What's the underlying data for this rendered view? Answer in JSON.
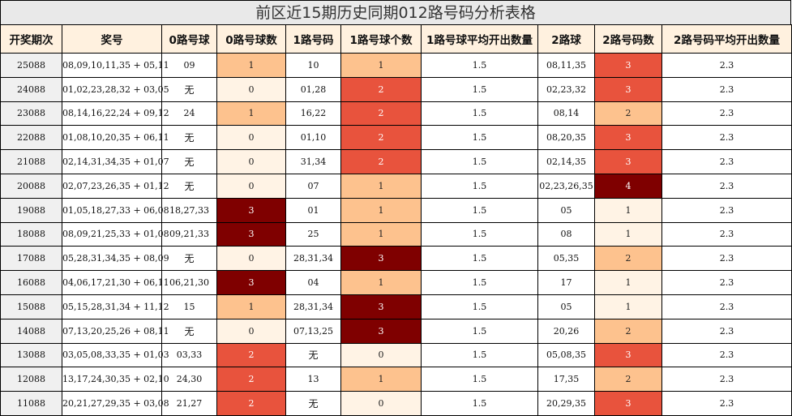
{
  "title": "前区近15期历史同期012路号码分析表格",
  "headers": [
    "开奖期次",
    "奖号",
    "0路号球",
    "0路号球数",
    "1路号码",
    "1路号球个数",
    "1路号球平均开出数量",
    "2路球",
    "2路号码数",
    "2路号码平均开出数量"
  ],
  "rows": [
    {
      "period": "25088",
      "numbers": "08,09,10,11,35 + 05,11",
      "r0": "09",
      "c0": "1",
      "r1": "10",
      "c1": "1",
      "a1": "1.5",
      "r2": "08,11,35",
      "c2": "3",
      "a2": "2.3"
    },
    {
      "period": "24088",
      "numbers": "01,02,23,28,32 + 03,05",
      "r0": "无",
      "c0": "0",
      "r1": "01,28",
      "c1": "2",
      "a1": "1.5",
      "r2": "02,23,32",
      "c2": "3",
      "a2": "2.3"
    },
    {
      "period": "23088",
      "numbers": "08,14,16,22,24 + 09,12",
      "r0": "24",
      "c0": "1",
      "r1": "16,22",
      "c1": "2",
      "a1": "1.5",
      "r2": "08,14",
      "c2": "2",
      "a2": "2.3"
    },
    {
      "period": "22088",
      "numbers": "01,08,10,20,35 + 06,11",
      "r0": "无",
      "c0": "0",
      "r1": "01,10",
      "c1": "2",
      "a1": "1.5",
      "r2": "08,20,35",
      "c2": "3",
      "a2": "2.3"
    },
    {
      "period": "21088",
      "numbers": "02,14,31,34,35 + 01,07",
      "r0": "无",
      "c0": "0",
      "r1": "31,34",
      "c1": "2",
      "a1": "1.5",
      "r2": "02,14,35",
      "c2": "3",
      "a2": "2.3"
    },
    {
      "period": "20088",
      "numbers": "02,07,23,26,35 + 01,12",
      "r0": "无",
      "c0": "0",
      "r1": "07",
      "c1": "1",
      "a1": "1.5",
      "r2": "02,23,26,35",
      "c2": "4",
      "a2": "2.3"
    },
    {
      "period": "19088",
      "numbers": "01,05,18,27,33 + 06,08",
      "r0": "18,27,33",
      "c0": "3",
      "r1": "01",
      "c1": "1",
      "a1": "1.5",
      "r2": "05",
      "c2": "1",
      "a2": "2.3"
    },
    {
      "period": "18088",
      "numbers": "08,09,21,25,33 + 01,08",
      "r0": "09,21,33",
      "c0": "3",
      "r1": "25",
      "c1": "1",
      "a1": "1.5",
      "r2": "08",
      "c2": "1",
      "a2": "2.3"
    },
    {
      "period": "17088",
      "numbers": "05,28,31,34,35 + 08,09",
      "r0": "无",
      "c0": "0",
      "r1": "28,31,34",
      "c1": "3",
      "a1": "1.5",
      "r2": "05,35",
      "c2": "2",
      "a2": "2.3"
    },
    {
      "period": "16088",
      "numbers": "04,06,17,21,30 + 06,11",
      "r0": "06,21,30",
      "c0": "3",
      "r1": "04",
      "c1": "1",
      "a1": "1.5",
      "r2": "17",
      "c2": "1",
      "a2": "2.3"
    },
    {
      "period": "15088",
      "numbers": "05,15,28,31,34 + 11,12",
      "r0": "15",
      "c0": "1",
      "r1": "28,31,34",
      "c1": "3",
      "a1": "1.5",
      "r2": "05",
      "c2": "1",
      "a2": "2.3"
    },
    {
      "period": "14088",
      "numbers": "07,13,20,25,26 + 08,11",
      "r0": "无",
      "c0": "0",
      "r1": "07,13,25",
      "c1": "3",
      "a1": "1.5",
      "r2": "20,26",
      "c2": "2",
      "a2": "2.3"
    },
    {
      "period": "13088",
      "numbers": "03,05,08,33,35 + 01,03",
      "r0": "03,33",
      "c0": "2",
      "r1": "无",
      "c1": "0",
      "a1": "1.5",
      "r2": "05,08,35",
      "c2": "3",
      "a2": "2.3"
    },
    {
      "period": "12088",
      "numbers": "13,17,24,30,35 + 02,10",
      "r0": "24,30",
      "c0": "2",
      "r1": "13",
      "c1": "1",
      "a1": "1.5",
      "r2": "17,35",
      "c2": "2",
      "a2": "2.3"
    },
    {
      "period": "11088",
      "numbers": "20,21,27,29,35 + 03,08",
      "r0": "21,27",
      "c0": "2",
      "r1": "无",
      "c1": "0",
      "a1": "1.5",
      "r2": "20,29,35",
      "c2": "3",
      "a2": "2.3"
    }
  ],
  "colors": {
    "level0": "#fff3e5",
    "level1": "#fdc28e",
    "level2": "#e8533d",
    "level3": "#7f0000",
    "header_bg": "#fff1df",
    "title_bg": "#e9e9e9"
  }
}
